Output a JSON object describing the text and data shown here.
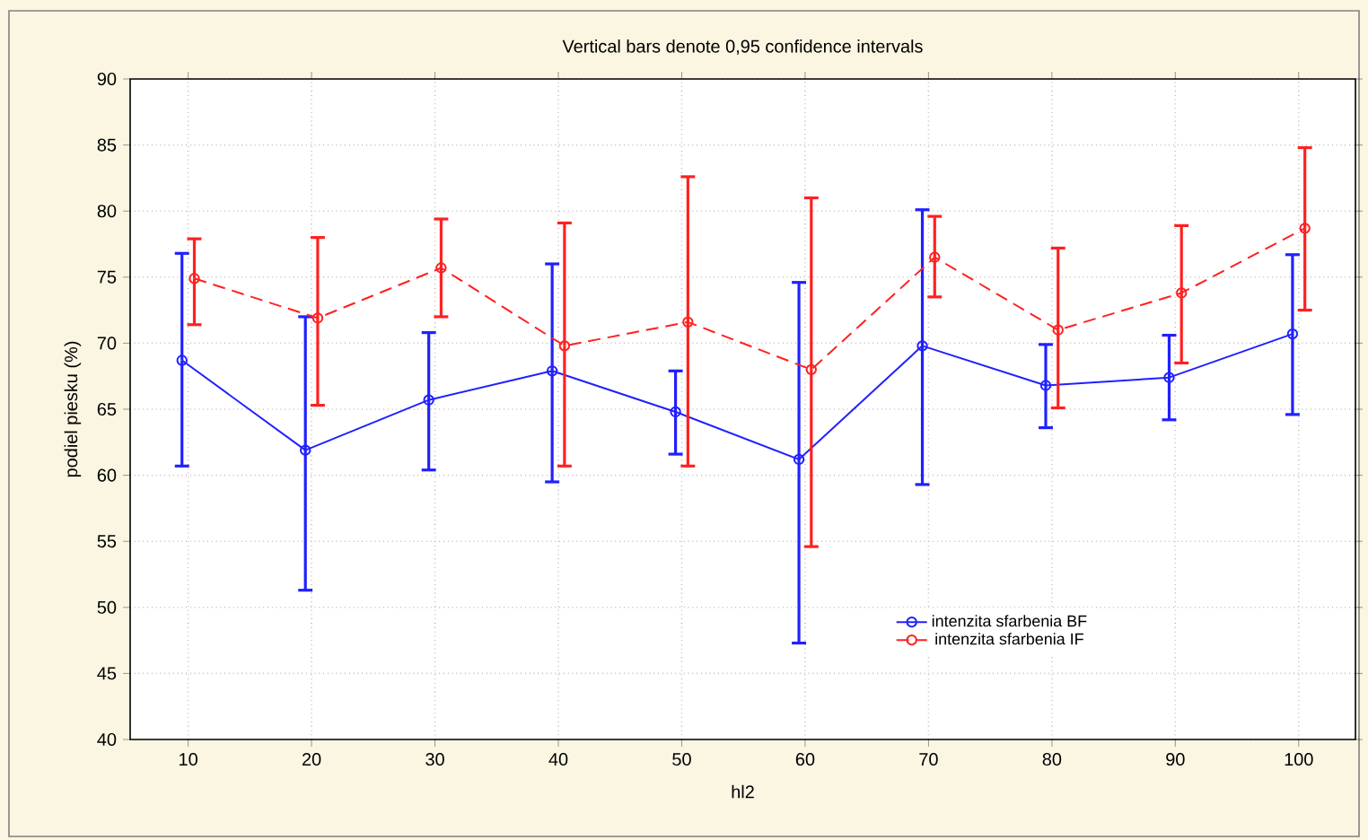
{
  "chart_data": {
    "type": "line",
    "title": "Vertical bars denote 0,95 confidence intervals",
    "xlabel": "hl2",
    "ylabel": "podiel piesku (%)",
    "categories": [
      "10",
      "20",
      "30",
      "40",
      "50",
      "60",
      "70",
      "80",
      "90",
      "100"
    ],
    "series": [
      {
        "name": "intenzita sfarbenia BF",
        "color": "#2020ff",
        "line_style": "solid",
        "values": [
          68.7,
          61.9,
          65.7,
          67.9,
          64.8,
          61.2,
          69.8,
          66.8,
          67.4,
          70.7
        ],
        "errors": [
          [
            60.7,
            76.8
          ],
          [
            51.3,
            72.0
          ],
          [
            60.4,
            70.8
          ],
          [
            59.5,
            76.0
          ],
          [
            61.6,
            67.9
          ],
          [
            47.3,
            74.6
          ],
          [
            59.3,
            80.1
          ],
          [
            63.6,
            69.9
          ],
          [
            64.2,
            70.6
          ],
          [
            64.6,
            76.7
          ]
        ]
      },
      {
        "name": "intenzita sfarbenia IF",
        "color": "#ff2020",
        "line_style": "dashed",
        "values": [
          74.9,
          71.9,
          75.7,
          69.8,
          71.6,
          68.0,
          76.5,
          71.0,
          73.8,
          78.7
        ],
        "errors": [
          [
            71.4,
            77.9
          ],
          [
            65.3,
            78.0
          ],
          [
            72.0,
            79.4
          ],
          [
            60.7,
            79.1
          ],
          [
            60.7,
            82.6
          ],
          [
            54.6,
            81.0
          ],
          [
            73.5,
            79.6
          ],
          [
            65.1,
            77.2
          ],
          [
            68.5,
            78.9
          ],
          [
            72.5,
            84.8
          ]
        ]
      }
    ],
    "ylim": [
      40,
      90
    ],
    "yticks": [
      40,
      45,
      50,
      55,
      60,
      65,
      70,
      75,
      80,
      85,
      90
    ],
    "grid": true,
    "legend": "bottom right",
    "marker": "circle"
  }
}
